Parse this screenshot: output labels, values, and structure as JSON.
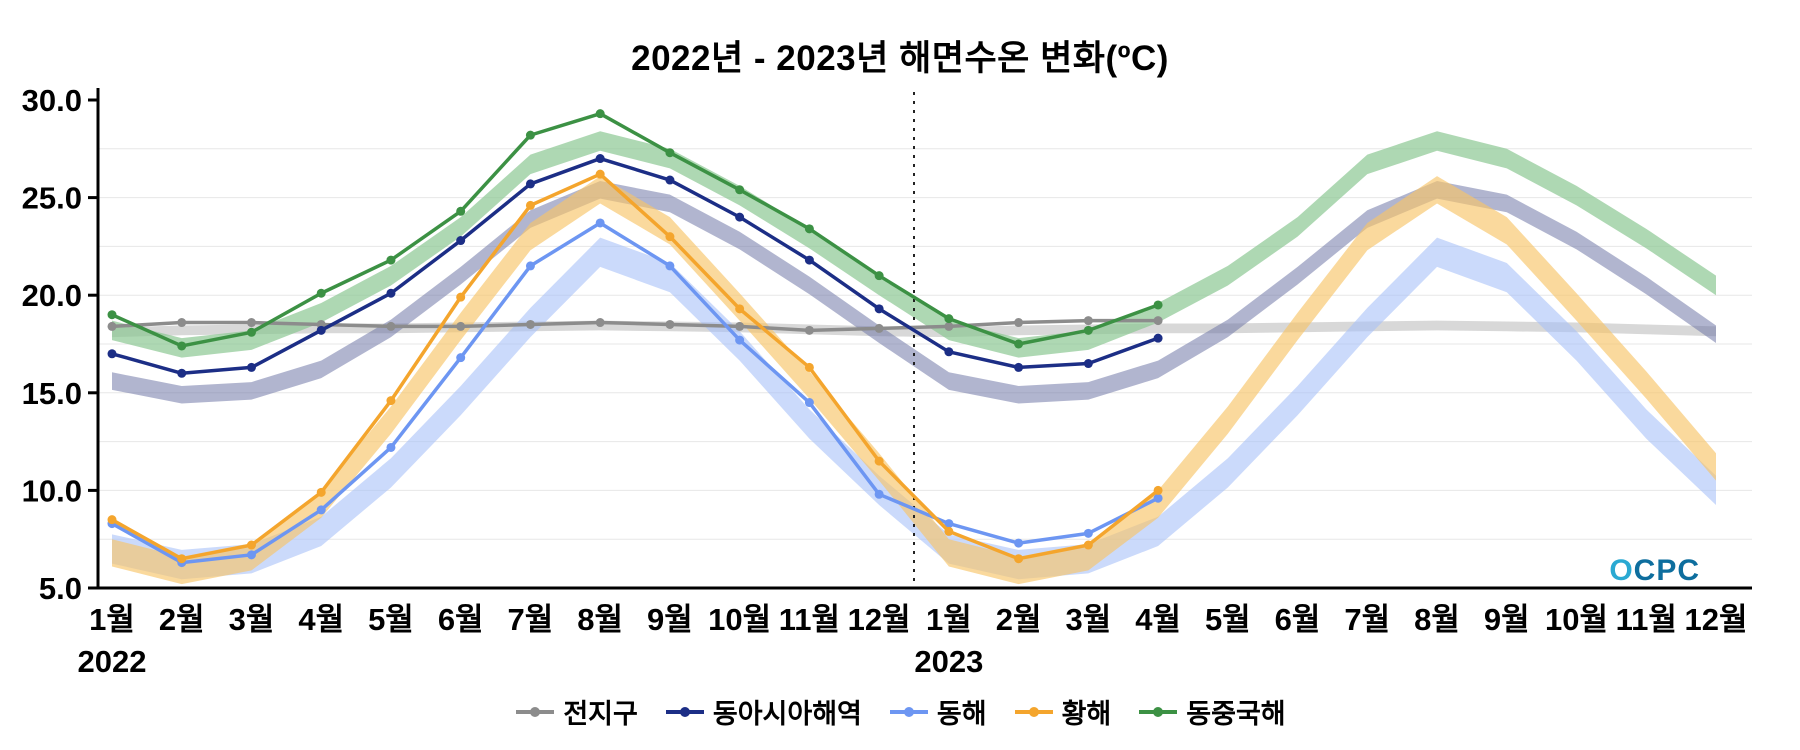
{
  "chart_data": {
    "type": "line",
    "title": "2022년 - 2023년 해면수온 변화(ºC)",
    "ylim": [
      5.0,
      30.0
    ],
    "y_ticks": [
      30,
      25,
      20,
      15,
      10,
      5
    ],
    "grid": "light horizontal lines every 2.5",
    "legend_position": "bottom",
    "months": [
      "1월",
      "2월",
      "3월",
      "4월",
      "5월",
      "6월",
      "7월",
      "8월",
      "9월",
      "10월",
      "11월",
      "12월"
    ],
    "years": [
      "2022",
      "2023"
    ],
    "divider_after_index": 11,
    "note_structure": "solid marked lines = observed Jan2022-Apr2023 (16 points); shaded bands = climatological range repeated over both years (12-month cycle)",
    "series": [
      {
        "id": "global",
        "name": "전지구",
        "color": "#8c8c8c",
        "band_color": "#a8a8a8",
        "band_opacity": 0.45,
        "band_halfwidth": 0.25,
        "observed": [
          18.4,
          18.6,
          18.6,
          18.5,
          18.4,
          18.4,
          18.5,
          18.6,
          18.5,
          18.4,
          18.2,
          18.3,
          18.4,
          18.6,
          18.7,
          18.7
        ],
        "climatology": [
          18.1,
          18.2,
          18.25,
          18.3,
          18.3,
          18.35,
          18.4,
          18.45,
          18.4,
          18.35,
          18.25,
          18.15
        ]
      },
      {
        "id": "east-asia",
        "name": "동아시아해역",
        "color": "#1c2e86",
        "band_color": "#7178a8",
        "band_opacity": 0.55,
        "band_halfwidth": 0.45,
        "observed": [
          17.0,
          16.0,
          16.3,
          18.2,
          20.1,
          22.8,
          25.7,
          27.0,
          25.9,
          24.0,
          21.8,
          19.3,
          17.1,
          16.3,
          16.5,
          17.8
        ],
        "climatology": [
          15.6,
          14.9,
          15.1,
          16.2,
          18.3,
          21.0,
          23.9,
          25.4,
          24.7,
          22.8,
          20.5,
          18.0
        ]
      },
      {
        "id": "east-sea",
        "name": "동해",
        "color": "#6d96f2",
        "band_color": "#a8c1f8",
        "band_opacity": 0.6,
        "band_halfwidth": 0.75,
        "observed": [
          8.3,
          6.3,
          6.7,
          9.0,
          12.2,
          16.8,
          21.5,
          23.7,
          21.5,
          17.7,
          14.5,
          9.8,
          8.3,
          7.3,
          7.8,
          9.6
        ],
        "climatology": [
          7.0,
          6.2,
          6.5,
          7.9,
          10.9,
          14.6,
          18.6,
          22.2,
          20.9,
          17.4,
          13.4,
          10.0
        ]
      },
      {
        "id": "yellow-sea",
        "name": "황해",
        "color": "#f4a52d",
        "band_color": "#f8c468",
        "band_opacity": 0.65,
        "band_halfwidth": 0.7,
        "observed": [
          8.5,
          6.5,
          7.2,
          9.9,
          14.6,
          19.9,
          24.6,
          26.2,
          23.0,
          19.3,
          16.3,
          11.5,
          7.9,
          6.5,
          7.2,
          10.0
        ],
        "climatology": [
          6.8,
          5.9,
          6.6,
          9.3,
          13.6,
          18.4,
          23.0,
          25.4,
          23.3,
          19.4,
          15.4,
          11.2
        ]
      },
      {
        "id": "east-china-sea",
        "name": "동중국해",
        "color": "#3c9144",
        "band_color": "#8cc893",
        "band_opacity": 0.7,
        "band_halfwidth": 0.5,
        "observed": [
          19.0,
          17.4,
          18.1,
          20.1,
          21.8,
          24.3,
          28.2,
          29.3,
          27.3,
          25.4,
          23.4,
          21.0,
          18.8,
          17.5,
          18.2,
          19.5
        ],
        "climatology": [
          18.2,
          17.3,
          17.7,
          19.1,
          21.0,
          23.5,
          26.7,
          27.9,
          27.0,
          25.1,
          22.9,
          20.5
        ]
      }
    ]
  },
  "logo": {
    "o": "O",
    "rest": "CPC"
  }
}
